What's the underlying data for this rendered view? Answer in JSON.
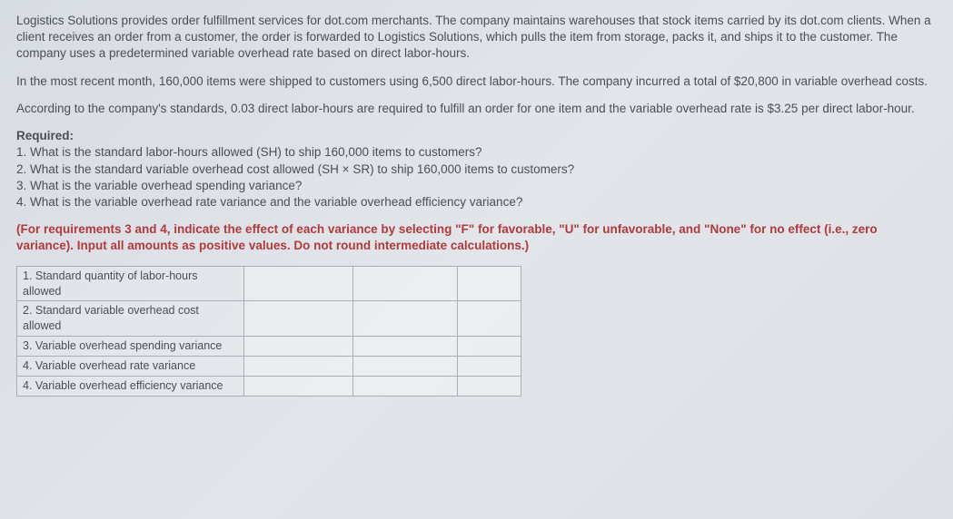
{
  "p1": "Logistics Solutions provides order fulfillment services for dot.com merchants. The company maintains warehouses that stock items carried by its dot.com clients. When a client receives an order from a customer, the order is forwarded to Logistics Solutions, which pulls the item from storage, packs it, and ships it to the customer. The company uses a predetermined variable overhead rate based on direct labor-hours.",
  "p2": "In the most recent month, 160,000 items were shipped to customers using 6,500 direct labor-hours. The company incurred a total of $20,800 in variable overhead costs.",
  "p3": "According to the company's standards, 0.03 direct labor-hours are required to fulfill an order for one item and the variable overhead rate is $3.25 per direct labor-hour.",
  "required_label": "Required:",
  "req": [
    "1. What is the standard labor-hours allowed (SH) to ship 160,000 items to customers?",
    "2. What is the standard variable overhead cost allowed (SH × SR) to ship 160,000 items to customers?",
    "3. What is the variable overhead spending variance?",
    "4. What is the variable overhead rate variance and the variable overhead efficiency variance?"
  ],
  "instruction": "(For requirements 3 and 4, indicate the effect of each variance by selecting \"F\" for favorable, \"U\" for unfavorable, and \"None\" for no effect (i.e., zero variance). Input all amounts as positive values. Do not round intermediate calculations.)",
  "rows": [
    "1. Standard quantity of labor-hours allowed",
    "2. Standard variable overhead cost allowed",
    "3. Variable overhead spending variance",
    "4. Variable overhead rate variance",
    "4. Variable overhead efficiency variance"
  ]
}
